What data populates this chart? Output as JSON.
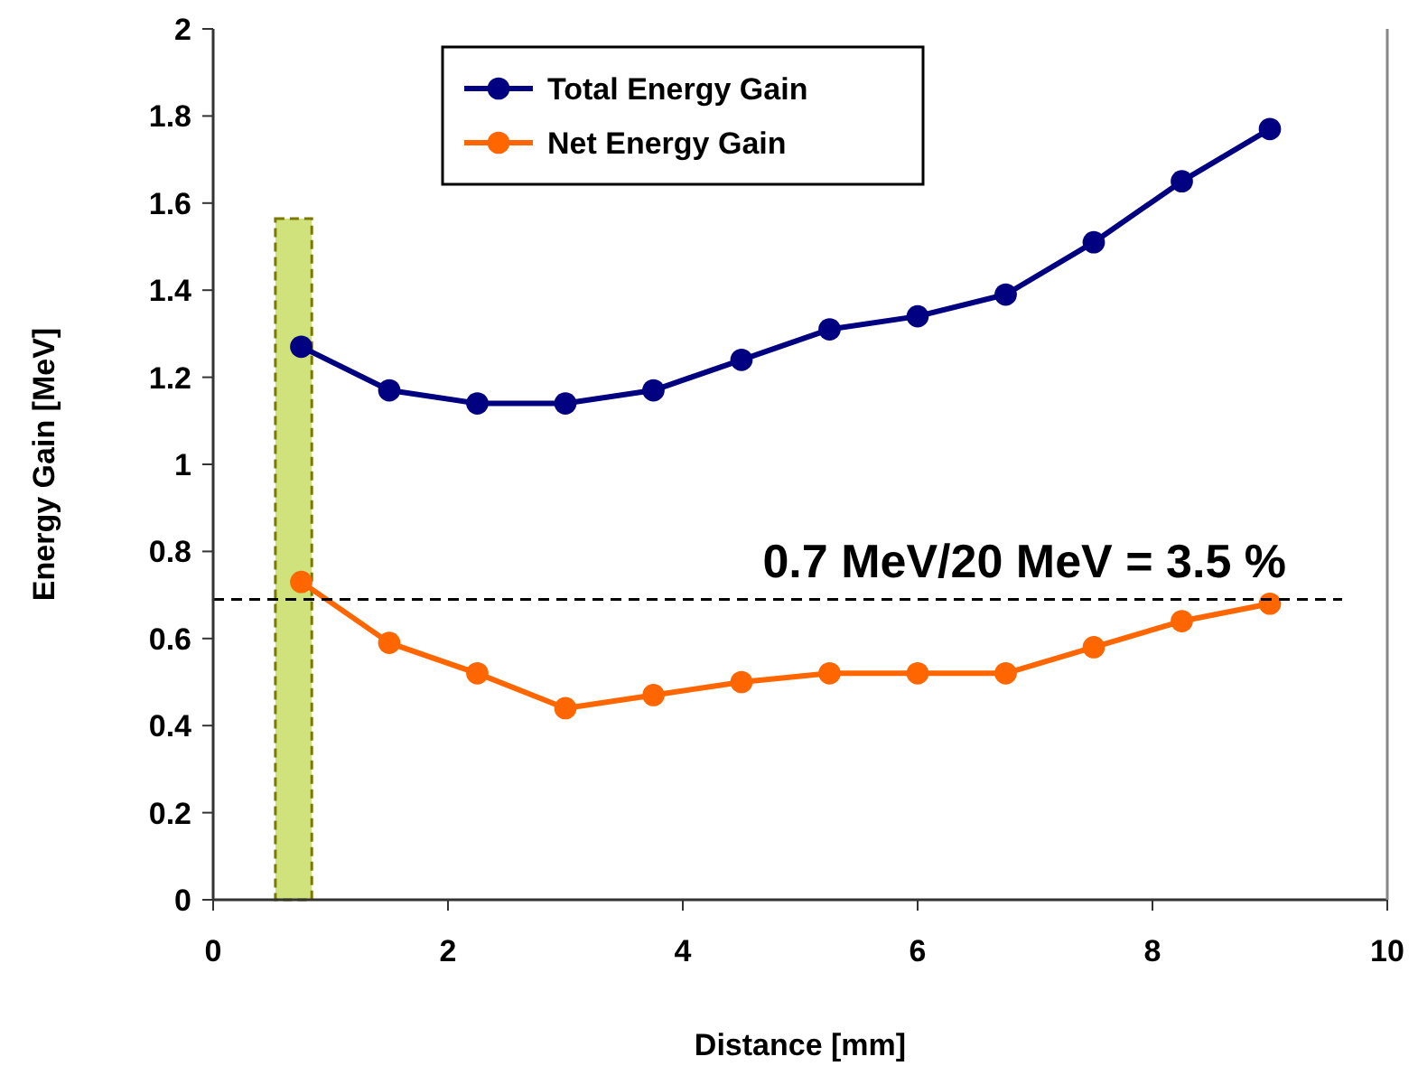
{
  "chart_data": {
    "type": "line",
    "xlabel": "Distance [mm]",
    "ylabel": "Energy Gain [MeV]",
    "x": [
      0.75,
      1.5,
      2.25,
      3,
      3.75,
      4.5,
      5.25,
      6,
      6.75,
      7.5,
      8.25,
      9
    ],
    "series": [
      {
        "name": "Total Energy Gain",
        "color": "#000080",
        "values": [
          1.27,
          1.17,
          1.14,
          1.14,
          1.17,
          1.24,
          1.31,
          1.34,
          1.39,
          1.51,
          1.65,
          1.77
        ]
      },
      {
        "name": "Net Energy Gain",
        "color": "#ff6600",
        "values": [
          0.73,
          0.59,
          0.52,
          0.44,
          0.47,
          0.5,
          0.52,
          0.52,
          0.52,
          0.58,
          0.64,
          0.68
        ]
      }
    ],
    "xlim": [
      0,
      10
    ],
    "xticks": [
      0,
      2,
      4,
      6,
      8,
      10
    ],
    "ylim": [
      0,
      2
    ],
    "yticks": [
      0,
      {
        "value": 0.2,
        "label": "0.2"
      },
      {
        "value": 0.4,
        "label": "0.4"
      },
      {
        "value": 0.6,
        "label": "0.6"
      },
      {
        "value": 0.8,
        "label": "0.8"
      },
      1,
      {
        "value": 1.2,
        "label": "1.2"
      },
      {
        "value": 1.4,
        "label": "1.4"
      },
      {
        "value": 1.6,
        "label": "1.6"
      },
      {
        "value": 1.8,
        "label": "1.8"
      },
      2
    ],
    "ref_lines": [
      {
        "axis": "y",
        "value": 0.69,
        "label": "0.7  MeV/20 MeV = 3.5 %",
        "color": "#000000",
        "line_style": "dashed"
      }
    ],
    "bands": [
      {
        "axis": "x",
        "from": 0.53,
        "to": 0.84,
        "color": "#b5d334"
      }
    ],
    "marker": "circle",
    "line_style": "solid",
    "grid": false,
    "legend": "top left"
  }
}
